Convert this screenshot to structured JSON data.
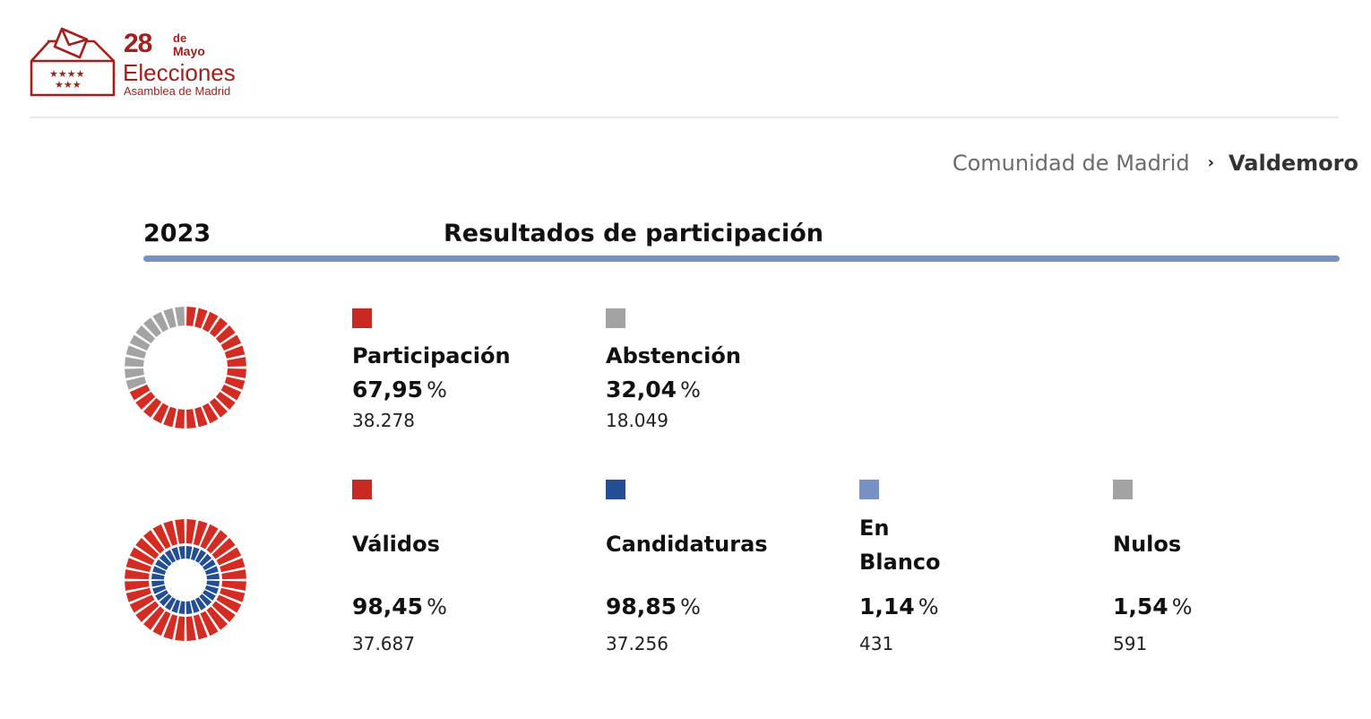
{
  "header": {
    "logo": {
      "day": "28",
      "de": "de",
      "month": "Mayo",
      "title": "Elecciones",
      "subtitle": "Asamblea de Madrid",
      "brand_color": "#a31f1c"
    }
  },
  "breadcrumb": {
    "parent": "Comunidad de Madrid",
    "separator": "›",
    "current": "Valdemoro"
  },
  "section": {
    "year": "2023",
    "title": "Resultados de participación",
    "bar_color": "#7891c4"
  },
  "participation": {
    "items": [
      {
        "label": "Participación",
        "percent": "67,95",
        "unit": "%",
        "count": "38.278",
        "color": "#c62a22"
      },
      {
        "label": "Abstención",
        "percent": "32,04",
        "unit": "%",
        "count": "18.049",
        "color": "#a3a3a3"
      }
    ]
  },
  "votes": {
    "items": [
      {
        "label": "Válidos",
        "percent": "98,45",
        "unit": "%",
        "count": "37.687",
        "color": "#c62a22"
      },
      {
        "label": "Candidaturas",
        "percent": "98,85",
        "unit": "%",
        "count": "37.256",
        "color": "#234e93"
      },
      {
        "label": "En Blanco",
        "percent": "1,14",
        "unit": "%",
        "count": "431",
        "color": "#7891c4"
      },
      {
        "label": "Nulos",
        "percent": "1,54",
        "unit": "%",
        "count": "591",
        "color": "#a3a3a3"
      }
    ]
  },
  "charts": {
    "participation_ring": {
      "segments": 32,
      "filled_percent": 67.95,
      "filled_color": "#d42b22",
      "rest_color": "#a3a3a3"
    },
    "votes_ring": {
      "outer": {
        "segments": 32,
        "filled_percent": 98.45,
        "filled_color": "#d42b22",
        "rest_color": "#a3a3a3"
      },
      "inner": {
        "segments": 28,
        "filled_percent": 98.85,
        "filled_color": "#234e93",
        "rest_color": "#7891c4"
      }
    }
  }
}
